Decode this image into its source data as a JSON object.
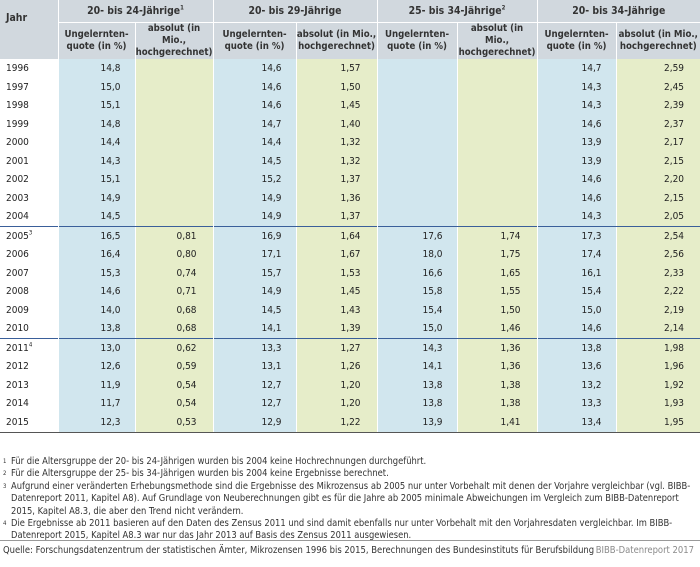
{
  "header": {
    "year": "Jahr",
    "groups": [
      {
        "label": "20- bis 24-Jährige",
        "sup": "1"
      },
      {
        "label": "20- bis 29-Jährige",
        "sup": ""
      },
      {
        "label": "25- bis 34-Jährige",
        "sup": "2"
      },
      {
        "label": "20- bis 34-Jährige",
        "sup": ""
      }
    ],
    "sub_quote": "Ungelernten-quote (in %)",
    "sub_abs": "absolut (in Mio., hochgerechnet)"
  },
  "rows": [
    {
      "year": "1996",
      "sup": "",
      "v": [
        "14,8",
        "",
        "14,6",
        "1,57",
        "",
        "",
        "14,7",
        "2,59"
      ]
    },
    {
      "year": "1997",
      "sup": "",
      "v": [
        "15,0",
        "",
        "14,6",
        "1,50",
        "",
        "",
        "14,3",
        "2,45"
      ]
    },
    {
      "year": "1998",
      "sup": "",
      "v": [
        "15,1",
        "",
        "14,6",
        "1,45",
        "",
        "",
        "14,3",
        "2,39"
      ]
    },
    {
      "year": "1999",
      "sup": "",
      "v": [
        "14,8",
        "",
        "14,7",
        "1,40",
        "",
        "",
        "14,6",
        "2,37"
      ]
    },
    {
      "year": "2000",
      "sup": "",
      "v": [
        "14,4",
        "",
        "14,4",
        "1,32",
        "",
        "",
        "13,9",
        "2,17"
      ]
    },
    {
      "year": "2001",
      "sup": "",
      "v": [
        "14,3",
        "",
        "14,5",
        "1,32",
        "",
        "",
        "13,9",
        "2,15"
      ]
    },
    {
      "year": "2002",
      "sup": "",
      "v": [
        "15,1",
        "",
        "15,2",
        "1,37",
        "",
        "",
        "14,6",
        "2,20"
      ]
    },
    {
      "year": "2003",
      "sup": "",
      "v": [
        "14,9",
        "",
        "14,9",
        "1,36",
        "",
        "",
        "14,6",
        "2,15"
      ]
    },
    {
      "year": "2004",
      "sup": "",
      "v": [
        "14,5",
        "",
        "14,9",
        "1,37",
        "",
        "",
        "14,3",
        "2,05"
      ]
    },
    {
      "year": "2005",
      "sup": "3",
      "v": [
        "16,5",
        "0,81",
        "16,9",
        "1,64",
        "17,6",
        "1,74",
        "17,3",
        "2,54"
      ]
    },
    {
      "year": "2006",
      "sup": "",
      "v": [
        "16,4",
        "0,80",
        "17,1",
        "1,67",
        "18,0",
        "1,75",
        "17,4",
        "2,56"
      ]
    },
    {
      "year": "2007",
      "sup": "",
      "v": [
        "15,3",
        "0,74",
        "15,7",
        "1,53",
        "16,6",
        "1,65",
        "16,1",
        "2,33"
      ]
    },
    {
      "year": "2008",
      "sup": "",
      "v": [
        "14,6",
        "0,71",
        "14,9",
        "1,45",
        "15,8",
        "1,55",
        "15,4",
        "2,22"
      ]
    },
    {
      "year": "2009",
      "sup": "",
      "v": [
        "14,0",
        "0,68",
        "14,5",
        "1,43",
        "15,4",
        "1,50",
        "15,0",
        "2,19"
      ]
    },
    {
      "year": "2010",
      "sup": "",
      "v": [
        "13,8",
        "0,68",
        "14,1",
        "1,39",
        "15,0",
        "1,46",
        "14,6",
        "2,14"
      ]
    },
    {
      "year": "2011",
      "sup": "4",
      "v": [
        "13,0",
        "0,62",
        "13,3",
        "1,27",
        "14,3",
        "1,36",
        "13,8",
        "1,98"
      ]
    },
    {
      "year": "2012",
      "sup": "",
      "v": [
        "12,6",
        "0,59",
        "13,1",
        "1,26",
        "14,1",
        "1,36",
        "13,6",
        "1,96"
      ]
    },
    {
      "year": "2013",
      "sup": "",
      "v": [
        "11,9",
        "0,54",
        "12,7",
        "1,20",
        "13,8",
        "1,38",
        "13,2",
        "1,92"
      ]
    },
    {
      "year": "2014",
      "sup": "",
      "v": [
        "11,7",
        "0,54",
        "12,7",
        "1,20",
        "13,8",
        "1,38",
        "13,3",
        "1,93"
      ]
    },
    {
      "year": "2015",
      "sup": "",
      "v": [
        "12,3",
        "0,53",
        "12,9",
        "1,22",
        "13,9",
        "1,41",
        "13,4",
        "1,95"
      ]
    }
  ],
  "footnotes": [
    {
      "n": "1",
      "text": "Für die Altersgruppe der 20- bis 24-Jährigen wurden bis 2004 keine Hochrechnungen durchgeführt."
    },
    {
      "n": "2",
      "text": "Für die Altersgruppe der 25- bis 34-Jährigen wurden bis 2004 keine Ergebnisse berechnet."
    },
    {
      "n": "3",
      "text": "Aufgrund einer veränderten Erhebungsmethode sind die Ergebnisse des Mikrozensus ab 2005 nur unter Vorbehalt mit denen der Vorjahre vergleichbar (vgl. BIBB-Datenreport 2011, Kapitel A8). Auf Grundlage von Neuberechnungen gibt es für die Jahre ab 2005 minimale Abweichungen im Vergleich zum BIBB-Datenreport 2015, Kapitel A8.3, die aber den Trend nicht verändern."
    },
    {
      "n": "4",
      "text": "Die Ergebnisse ab 2011 basieren auf den Daten des Zensus 2011 und sind damit ebenfalls nur unter Vorbehalt mit den Vorjahresdaten vergleichbar. Im BIBB-Datenreport 2015, Kapitel A8.3 war nur das Jahr 2013 auf Basis des Zensus 2011 ausgewiesen."
    }
  ],
  "source": "Quelle: Forschungsdatenzentrum der statistischen Ämter, Mikrozensen 1996 bis 2015, Berechnungen des Bundesinstituts für Berufsbildung",
  "brand": "BIBB-Datenreport 2017"
}
